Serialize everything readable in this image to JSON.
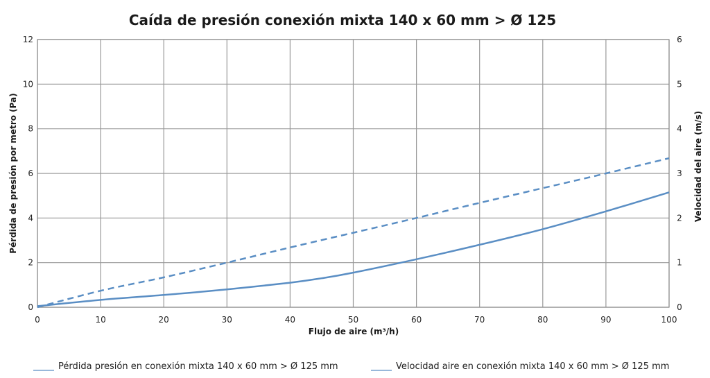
{
  "chart_data": {
    "type": "line",
    "title": "Caída de presión conexión mixta 140 x 60 mm > Ø 125",
    "xlabel": "Flujo de aire (m³/h)",
    "ylabel": "Pérdida de presión por metro (Pa)",
    "y2label": "Velocidad del aire (m/s)",
    "xlim": [
      0,
      100
    ],
    "ylim": [
      0,
      12
    ],
    "y2lim": [
      0,
      6
    ],
    "x_ticks": [
      0,
      10,
      20,
      30,
      40,
      50,
      60,
      70,
      80,
      90,
      100
    ],
    "y_ticks": [
      0,
      2,
      4,
      6,
      8,
      10,
      12
    ],
    "y2_ticks": [
      0,
      1,
      2,
      3,
      4,
      5,
      6
    ],
    "grid": true,
    "legend_position": "bottom",
    "series": [
      {
        "name": "Pérdida presión en conexión mixta 140 x 60 mm > Ø 125 mm",
        "axis": "left",
        "style": "solid",
        "color": "#5a8ec4",
        "x": [
          0,
          10,
          20,
          30,
          40,
          45,
          50,
          60,
          70,
          80,
          90,
          100
        ],
        "y": [
          0.05,
          0.33,
          0.55,
          0.8,
          1.1,
          1.3,
          1.55,
          2.15,
          2.8,
          3.5,
          4.3,
          5.15
        ]
      },
      {
        "name": "Velocidad aire en conexión mixta 140 x 60 mm > Ø 125 mm",
        "axis": "right",
        "style": "dashed",
        "color": "#5a8ec4",
        "x": [
          0,
          10,
          20,
          30,
          40,
          50,
          60,
          70,
          80,
          90,
          100
        ],
        "y": [
          0.0,
          0.37,
          0.67,
          1.0,
          1.34,
          1.67,
          2.0,
          2.34,
          2.67,
          3.0,
          3.34
        ]
      }
    ]
  }
}
